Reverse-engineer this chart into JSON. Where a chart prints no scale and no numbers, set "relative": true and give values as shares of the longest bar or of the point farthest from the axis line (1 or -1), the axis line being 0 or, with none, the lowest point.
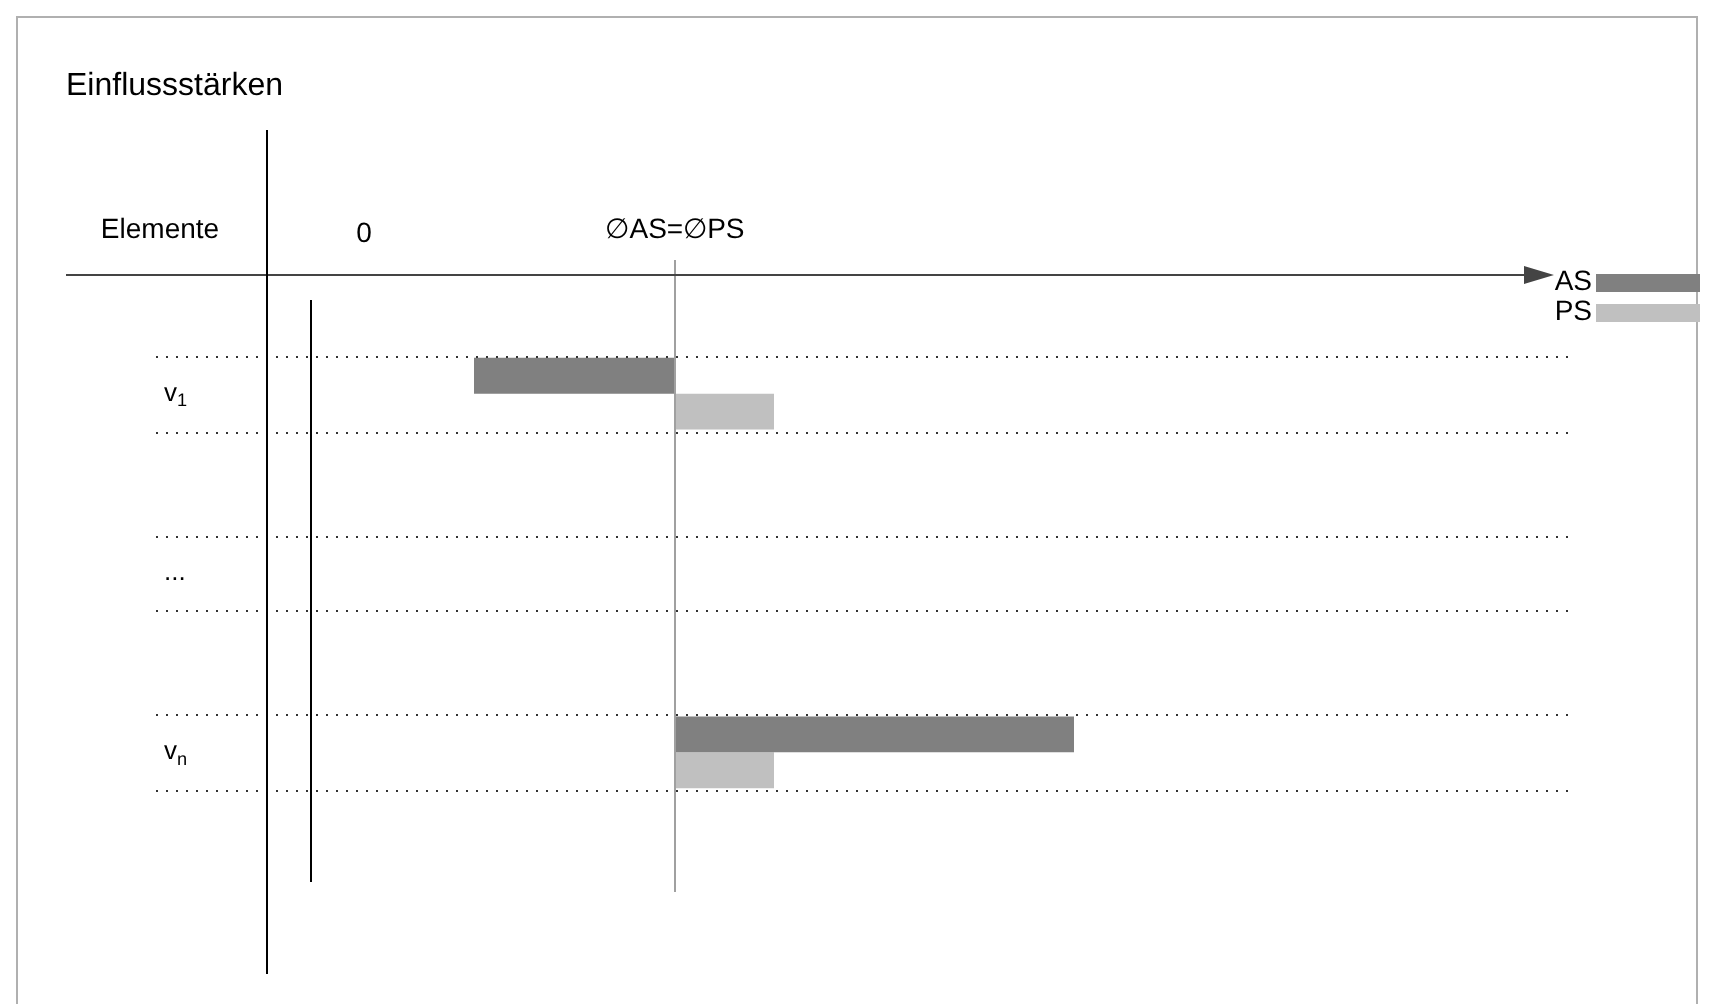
{
  "chart_data": {
    "type": "bar",
    "orientation": "horizontal",
    "relative": true,
    "title": "Einflussstärken",
    "ylabel": "Elemente",
    "categories": [
      "v$_{1}$",
      "...",
      "v$_{n}$"
    ],
    "series": [
      {
        "name": "AS",
        "color": "#808080",
        "values": [
          -0.5,
          null,
          1
        ]
      },
      {
        "name": "PS",
        "color": "#c0c0c0",
        "values": [
          0.25,
          null,
          0.25
        ]
      }
    ],
    "ref_lines": [
      {
        "axis": "x",
        "value": 0,
        "label": "∅AS=∅PS",
        "color": "#a0a0a0"
      }
    ],
    "annotations": [
      "0"
    ],
    "grid": true,
    "legend": "top right"
  }
}
